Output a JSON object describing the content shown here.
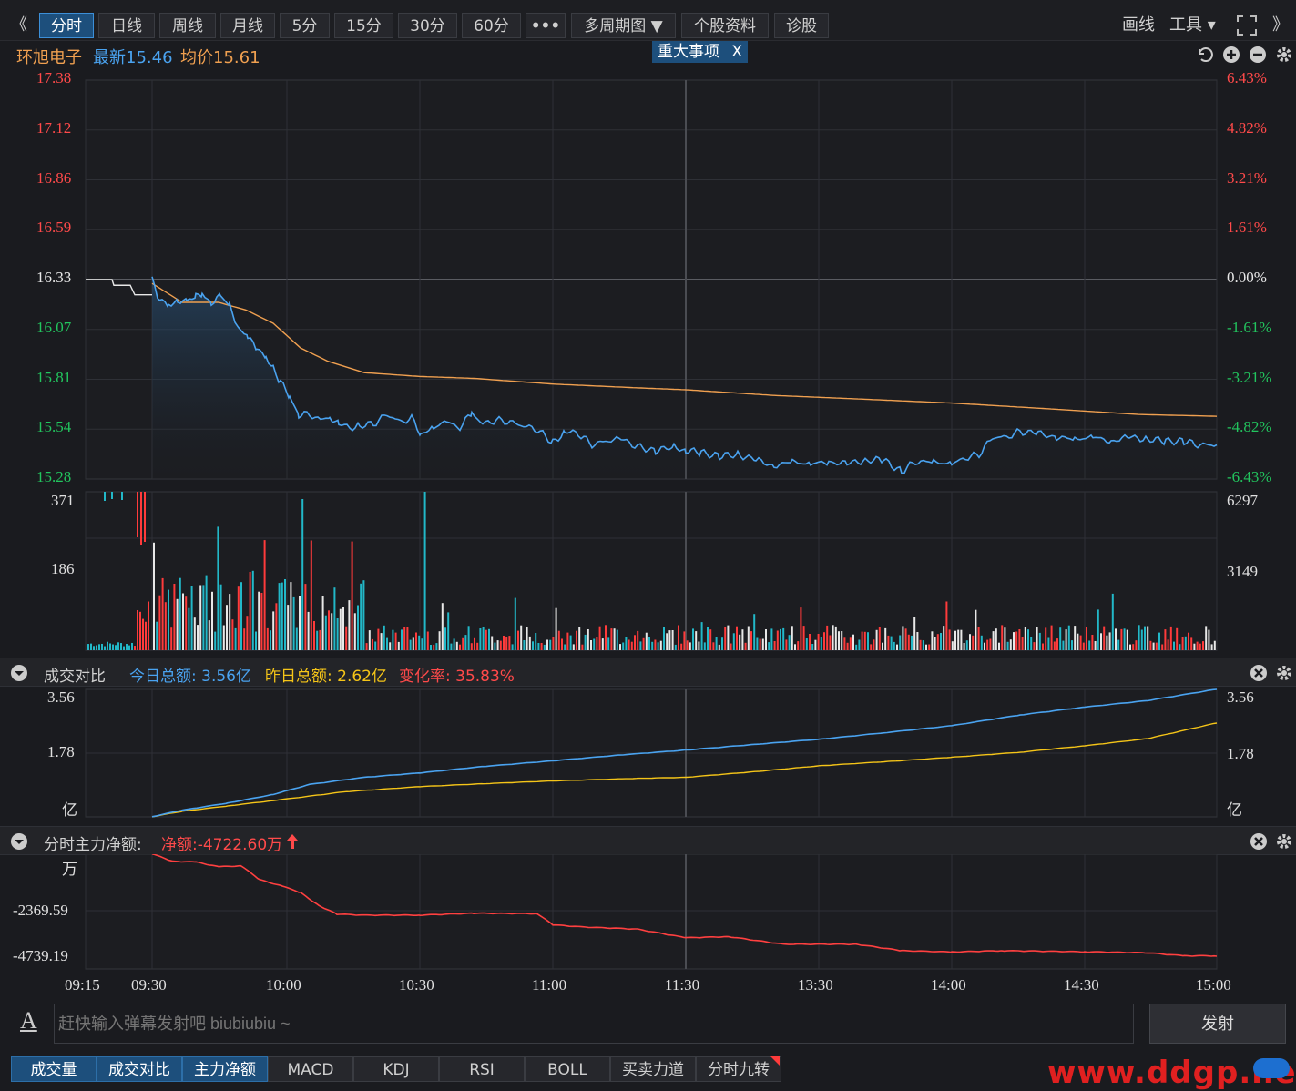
{
  "toolbar": {
    "back_icon": "《",
    "tabs": [
      {
        "label": "分时",
        "active": true
      },
      {
        "label": "日线",
        "active": false
      },
      {
        "label": "周线",
        "active": false
      },
      {
        "label": "月线",
        "active": false
      },
      {
        "label": "5分",
        "active": false
      },
      {
        "label": "15分",
        "active": false
      },
      {
        "label": "30分",
        "active": false
      },
      {
        "label": "60分",
        "active": false
      },
      {
        "label": "•••",
        "active": false
      },
      {
        "label": "多周期图 ▼",
        "active": false
      },
      {
        "label": "个股资料",
        "active": false
      },
      {
        "label": "诊股",
        "active": false
      }
    ],
    "draw_label": "画线",
    "tools_label": "工具 ▾",
    "forward_icon": "》"
  },
  "info": {
    "stock_name": "环旭电子",
    "latest_label": "最新15.46",
    "avg_label": "均价15.61",
    "event_tag": "重大事项",
    "event_close": "X"
  },
  "price_chart": {
    "left_ticks": [
      "17.38",
      "17.12",
      "16.86",
      "16.59",
      "16.33",
      "16.07",
      "15.81",
      "15.54",
      "15.28"
    ],
    "right_ticks": [
      "6.43%",
      "4.82%",
      "3.21%",
      "1.61%",
      "0.00%",
      "-1.61%",
      "-3.21%",
      "-4.82%",
      "-6.43%"
    ],
    "vol_left_ticks": [
      "371",
      "186"
    ],
    "vol_right_ticks": [
      "6297",
      "3149"
    ]
  },
  "turnover_panel": {
    "title": "成交对比",
    "today_label": "今日总额: 3.56亿",
    "yesterday_label": "昨日总额: 2.62亿",
    "change_label": "变化率: 35.83%",
    "left_ticks": [
      "3.56",
      "1.78",
      "亿"
    ],
    "right_ticks": [
      "3.56",
      "1.78",
      "亿"
    ]
  },
  "netflow_panel": {
    "title": "分时主力净额:",
    "net_label": "净额:-4722.60万",
    "left_ticks": [
      "万",
      "-2369.59",
      "-4739.19"
    ]
  },
  "time_axis": [
    "09:15",
    "09:30",
    "10:00",
    "10:30",
    "11:00",
    "11:30",
    "13:30",
    "14:00",
    "14:30",
    "15:00"
  ],
  "danmaku": {
    "font_icon": "A",
    "placeholder": "赶快输入弹幕发射吧 biubiubiu ~",
    "send_label": "发射"
  },
  "bottom_tabs": [
    {
      "label": "成交量",
      "on": true
    },
    {
      "label": "成交对比",
      "on": true
    },
    {
      "label": "主力净额",
      "on": true
    },
    {
      "label": "MACD",
      "on": false
    },
    {
      "label": "KDJ",
      "on": false
    },
    {
      "label": "RSI",
      "on": false
    },
    {
      "label": "BOLL",
      "on": false
    },
    {
      "label": "买卖力道",
      "on": false
    },
    {
      "label": "分时九转",
      "on": false
    }
  ],
  "watermark": "www.ddgp.net",
  "colors": {
    "up": "#ff3b3b",
    "down": "#22c55e",
    "price_line": "#4aa3f0",
    "avg_line": "#f0a050",
    "yesterday_line": "#f5c518",
    "netflow": "#ff4040",
    "accent": "#3c8fd8"
  }
}
